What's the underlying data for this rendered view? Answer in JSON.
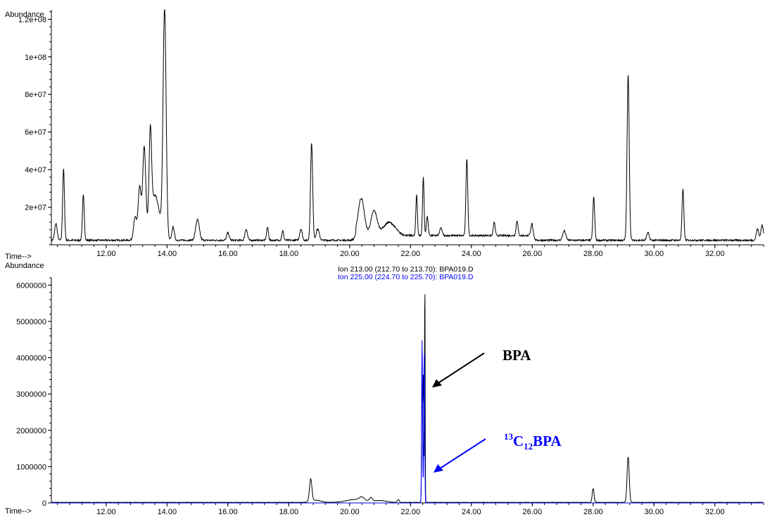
{
  "chart_data": [
    {
      "type": "line",
      "ylabel": "Abundance",
      "xlabel": "Time-->",
      "xlim": [
        10.2,
        33.6
      ],
      "ylim": [
        0,
        125000000
      ],
      "xticks": [
        "12.00",
        "14.00",
        "16.00",
        "18.00",
        "20.00",
        "22.00",
        "24.00",
        "26.00",
        "28.00",
        "30.00",
        "32.00"
      ],
      "yticks": [
        "2e+07",
        "4e+07",
        "6e+07",
        "8e+07",
        "1e+08",
        "1.2e+08"
      ],
      "grid": false,
      "series": [
        {
          "color": "#000000",
          "peaks": [
            [
              10.35,
              9000000,
              0.04
            ],
            [
              10.6,
              38000000,
              0.03
            ],
            [
              11.25,
              24000000,
              0.03
            ],
            [
              12.95,
              12000000,
              0.05
            ],
            [
              13.1,
              28000000,
              0.05
            ],
            [
              13.25,
              48000000,
              0.05
            ],
            [
              13.45,
              47000000,
              0.04
            ],
            [
              13.6,
              24000000,
              0.15
            ],
            [
              13.92,
              123000000,
              0.05
            ],
            [
              14.2,
              7000000,
              0.04
            ],
            [
              15.0,
              11000000,
              0.06
            ],
            [
              16.0,
              4000000,
              0.04
            ],
            [
              16.6,
              6000000,
              0.04
            ],
            [
              17.3,
              7000000,
              0.03
            ],
            [
              17.8,
              5000000,
              0.03
            ],
            [
              18.4,
              6000000,
              0.04
            ],
            [
              18.75,
              52000000,
              0.035
            ],
            [
              18.95,
              6000000,
              0.05
            ],
            [
              20.38,
              20000000,
              0.1
            ],
            [
              20.8,
              13000000,
              0.1
            ],
            [
              21.3,
              7000000,
              0.2
            ],
            [
              22.2,
              22000000,
              0.025
            ],
            [
              22.42,
              31000000,
              0.025
            ],
            [
              22.55,
              10000000,
              0.03
            ],
            [
              23.0,
              4000000,
              0.04
            ],
            [
              23.85,
              41000000,
              0.03
            ],
            [
              24.75,
              7000000,
              0.03
            ],
            [
              25.5,
              8000000,
              0.03
            ],
            [
              26.0,
              7000000,
              0.04
            ],
            [
              27.05,
              5000000,
              0.05
            ],
            [
              28.02,
              23000000,
              0.03
            ],
            [
              29.15,
              88000000,
              0.035
            ],
            [
              29.8,
              4000000,
              0.04
            ],
            [
              30.95,
              27000000,
              0.03
            ],
            [
              33.4,
              6000000,
              0.04
            ],
            [
              33.55,
              8000000,
              0.04
            ]
          ]
        }
      ]
    },
    {
      "type": "line",
      "ylabel": "Abundance",
      "xlabel": "Time-->",
      "xlim": [
        10.2,
        33.6
      ],
      "ylim": [
        0,
        6200000
      ],
      "xticks": [
        "12.00",
        "14.00",
        "16.00",
        "18.00",
        "20.00",
        "22.00",
        "24.00",
        "26.00",
        "28.00",
        "30.00",
        "32.00"
      ],
      "yticks": [
        "0",
        "1000000",
        "2000000",
        "3000000",
        "4000000",
        "5000000",
        "6000000"
      ],
      "grid": false,
      "series": [
        {
          "name": "Ion 213.00 (212.70 to 213.70): BPA019.D",
          "color": "#000000",
          "peaks": [
            [
              18.72,
              620000,
              0.04
            ],
            [
              18.9,
              60000,
              0.15
            ],
            [
              20.2,
              80000,
              0.3
            ],
            [
              20.4,
              90000,
              0.08
            ],
            [
              20.7,
              100000,
              0.05
            ],
            [
              21.0,
              50000,
              0.2
            ],
            [
              21.6,
              80000,
              0.03
            ],
            [
              22.38,
              3300000,
              0.015
            ],
            [
              22.42,
              3450000,
              0.015
            ],
            [
              22.47,
              6300000,
              0.01
            ],
            [
              28.0,
              380000,
              0.03
            ],
            [
              29.15,
              1250000,
              0.035
            ]
          ]
        },
        {
          "name": "Ion 225.00 (224.70 to 225.70): BPA019.D",
          "color": "#0000ff",
          "peaks": [
            [
              22.38,
              4500000,
              0.015
            ],
            [
              22.45,
              4200000,
              0.015
            ]
          ]
        }
      ]
    }
  ],
  "top_panel": {
    "ylabel": "Abundance",
    "xlabel": "Time-->"
  },
  "bottom_panel": {
    "ylabel": "Abundance",
    "xlabel": "Time-->",
    "ion1": "Ion 213.00 (212.70 to 213.70): BPA019.D",
    "ion2": "Ion 225.00 (224.70 to 225.70): BPA019.D",
    "ion1_color": "#000000",
    "ion2_color": "#0000ff"
  },
  "annotations": {
    "bpa": "BPA",
    "labeled_sup": "13",
    "labeled_c": "C",
    "labeled_sub": "12",
    "labeled_rest": "BPA",
    "bpa_color": "#000000",
    "labeled_color": "#0000ff"
  }
}
